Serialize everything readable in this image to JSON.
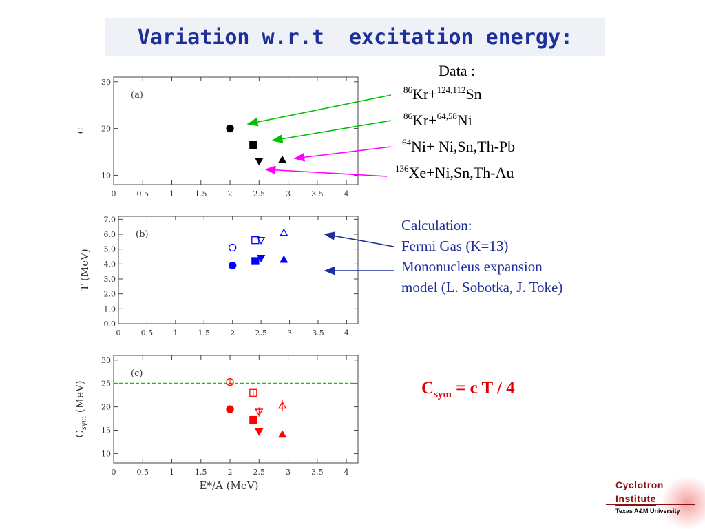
{
  "title": "Variation w.r.t  excitation energy:",
  "legend": {
    "heading": "Data :",
    "entries": [
      {
        "pre": "86",
        "a": "Kr+",
        "sup": "124,112",
        "b": "Sn"
      },
      {
        "pre": "86",
        "a": "Kr+",
        "sup": "64,58",
        "b": "Ni"
      },
      {
        "pre": "64",
        "a": "Ni+ Ni,Sn,Th-Pb",
        "sup": "",
        "b": ""
      },
      {
        "pre": "136",
        "a": "Xe+Ni,Sn,Th-Au",
        "sup": "",
        "b": ""
      }
    ]
  },
  "calculation": {
    "lines": [
      "Calculation:",
      "Fermi Gas (K=13)",
      "Mononucleus expansion",
      "model (L. Sobotka, J. Toke)"
    ]
  },
  "formula": {
    "c": "C",
    "sub": "sym",
    "rest": " = c T / 4"
  },
  "logo": {
    "line1": "Cyclotron",
    "line2": "Institute",
    "line3": "Texas A&M University"
  },
  "colors": {
    "title": "#1f2f9a",
    "green_arrow": "#00c000",
    "magenta_arrow": "#ff00ff",
    "navy_arrow": "#1f2f9a",
    "blue_points": "#0000ff",
    "red_points": "#ff0000",
    "green_line": "#00d000"
  },
  "chart_data": [
    {
      "type": "scatter",
      "panel_label": "(a)",
      "xlabel": "",
      "ylabel": "c",
      "xlim": [
        0,
        4.2
      ],
      "ylim": [
        8,
        31
      ],
      "xticks": [
        "0",
        "0.5",
        "1",
        "1.5",
        "2",
        "2.5",
        "3",
        "3.5",
        "4"
      ],
      "yticks": [
        "10",
        "20",
        "30"
      ],
      "ytick_values": [
        10,
        20,
        30
      ],
      "series": [
        {
          "marker": "circle",
          "filled": true,
          "color": "#000000",
          "points": [
            {
              "x": 2.0,
              "y": 20.0
            }
          ]
        },
        {
          "marker": "square",
          "filled": true,
          "color": "#000000",
          "points": [
            {
              "x": 2.4,
              "y": 16.5
            }
          ]
        },
        {
          "marker": "triangle-down",
          "filled": true,
          "color": "#000000",
          "points": [
            {
              "x": 2.5,
              "y": 13.0
            }
          ]
        },
        {
          "marker": "triangle-up",
          "filled": true,
          "color": "#000000",
          "points": [
            {
              "x": 2.9,
              "y": 13.3
            }
          ]
        }
      ]
    },
    {
      "type": "scatter",
      "panel_label": "(b)",
      "xlabel": "",
      "ylabel": "T   (MeV)",
      "xlim": [
        0,
        4.2
      ],
      "ylim": [
        0,
        7.2
      ],
      "xticks": [
        "0",
        "0.5",
        "1",
        "1.5",
        "2",
        "2.5",
        "3",
        "3.5",
        "4"
      ],
      "yticks": [
        "0.0",
        "1.0",
        "2.0",
        "3.0",
        "4.0",
        "5.0",
        "6.0",
        "7.0"
      ],
      "ytick_values": [
        0,
        1,
        2,
        3,
        4,
        5,
        6,
        7
      ],
      "series": [
        {
          "marker": "circle",
          "filled": false,
          "color": "#0000ff",
          "points": [
            {
              "x": 2.0,
              "y": 5.1
            }
          ]
        },
        {
          "marker": "square",
          "filled": false,
          "color": "#0000ff",
          "points": [
            {
              "x": 2.4,
              "y": 5.6
            }
          ]
        },
        {
          "marker": "triangle-down",
          "filled": false,
          "color": "#0000ff",
          "points": [
            {
              "x": 2.5,
              "y": 5.6
            }
          ]
        },
        {
          "marker": "triangle-up",
          "filled": false,
          "color": "#0000ff",
          "points": [
            {
              "x": 2.9,
              "y": 6.1
            }
          ]
        },
        {
          "marker": "circle",
          "filled": true,
          "color": "#0000ff",
          "points": [
            {
              "x": 2.0,
              "y": 3.9
            }
          ]
        },
        {
          "marker": "square",
          "filled": true,
          "color": "#0000ff",
          "points": [
            {
              "x": 2.4,
              "y": 4.2
            }
          ]
        },
        {
          "marker": "triangle-down",
          "filled": true,
          "color": "#0000ff",
          "points": [
            {
              "x": 2.5,
              "y": 4.4
            }
          ]
        },
        {
          "marker": "triangle-up",
          "filled": true,
          "color": "#0000ff",
          "points": [
            {
              "x": 2.9,
              "y": 4.3
            }
          ]
        }
      ]
    },
    {
      "type": "scatter",
      "panel_label": "(c)",
      "xlabel": "E*/A (MeV)",
      "ylabel": "C",
      "ylabel_sub": "sym",
      "ylabel_unit": "(MeV)",
      "xlim": [
        0,
        4.2
      ],
      "ylim": [
        8,
        31
      ],
      "xticks": [
        "0",
        "0.5",
        "1",
        "1.5",
        "2",
        "2.5",
        "3",
        "3.5",
        "4"
      ],
      "yticks": [
        "10",
        "15",
        "20",
        "25",
        "30"
      ],
      "ytick_values": [
        10,
        15,
        20,
        25,
        30
      ],
      "hline": {
        "y": 25,
        "style": "dashed",
        "color": "#00d000"
      },
      "series": [
        {
          "marker": "circle",
          "filled": false,
          "color": "#ff0000",
          "points": [
            {
              "x": 2.0,
              "y": 25.3,
              "err": 0.6
            }
          ]
        },
        {
          "marker": "square",
          "filled": false,
          "color": "#ff0000",
          "points": [
            {
              "x": 2.4,
              "y": 23.0,
              "err": 0.6
            }
          ]
        },
        {
          "marker": "triangle-down",
          "filled": false,
          "color": "#ff0000",
          "points": [
            {
              "x": 2.5,
              "y": 18.9,
              "err": 1.0
            }
          ]
        },
        {
          "marker": "triangle-up",
          "filled": false,
          "color": "#ff0000",
          "points": [
            {
              "x": 2.9,
              "y": 20.3,
              "err": 1.2
            }
          ]
        },
        {
          "marker": "circle",
          "filled": true,
          "color": "#ff0000",
          "points": [
            {
              "x": 2.0,
              "y": 19.5
            }
          ]
        },
        {
          "marker": "square",
          "filled": true,
          "color": "#ff0000",
          "points": [
            {
              "x": 2.4,
              "y": 17.2
            }
          ]
        },
        {
          "marker": "triangle-down",
          "filled": true,
          "color": "#ff0000",
          "points": [
            {
              "x": 2.5,
              "y": 14.7
            }
          ]
        },
        {
          "marker": "triangle-up",
          "filled": true,
          "color": "#ff0000",
          "points": [
            {
              "x": 2.9,
              "y": 14.1
            }
          ]
        }
      ]
    }
  ]
}
